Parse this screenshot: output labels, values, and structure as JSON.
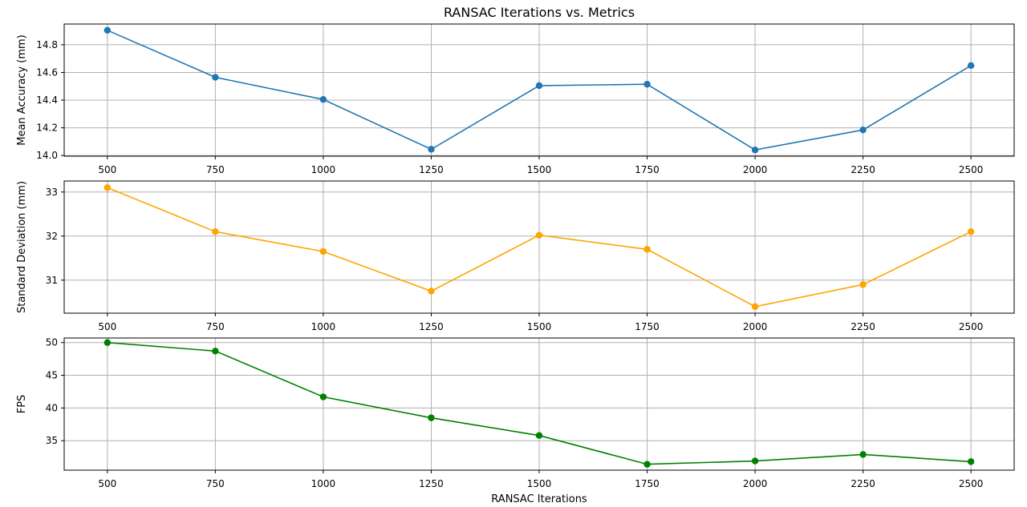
{
  "chart_data": {
    "type": "line",
    "title": "RANSAC Iterations vs. Metrics",
    "xlabel": "RANSAC Iterations",
    "x": [
      500,
      750,
      1000,
      1250,
      1500,
      1750,
      2000,
      2250,
      2500
    ],
    "xlim": [
      400,
      2600
    ],
    "grid": true,
    "subplots": [
      {
        "ylabel": "Mean Accuracy (mm)",
        "color": "#1f77b4",
        "values": [
          14.905,
          14.565,
          14.405,
          14.045,
          14.505,
          14.515,
          14.04,
          14.185,
          14.65
        ],
        "ylim": [
          13.995,
          14.95
        ],
        "yticks": [
          14.0,
          14.2,
          14.4,
          14.6,
          14.8
        ],
        "ytick_labels": [
          "14.0",
          "14.2",
          "14.4",
          "14.6",
          "14.8"
        ]
      },
      {
        "ylabel": "Standard Deviation (mm)",
        "color": "#ffa500",
        "values": [
          33.1,
          32.1,
          31.65,
          30.75,
          32.02,
          31.7,
          30.4,
          30.9,
          32.1
        ],
        "ylim": [
          30.25,
          33.25
        ],
        "yticks": [
          31,
          32,
          33
        ],
        "ytick_labels": [
          "31",
          "32",
          "33"
        ]
      },
      {
        "ylabel": "FPS",
        "color": "#008000",
        "values": [
          50.0,
          48.7,
          41.7,
          38.5,
          35.8,
          31.4,
          31.9,
          32.9,
          31.8
        ],
        "ylim": [
          30.5,
          50.7
        ],
        "yticks": [
          35,
          40,
          45,
          50
        ],
        "ytick_labels": [
          "35",
          "40",
          "45",
          "50"
        ]
      }
    ]
  }
}
